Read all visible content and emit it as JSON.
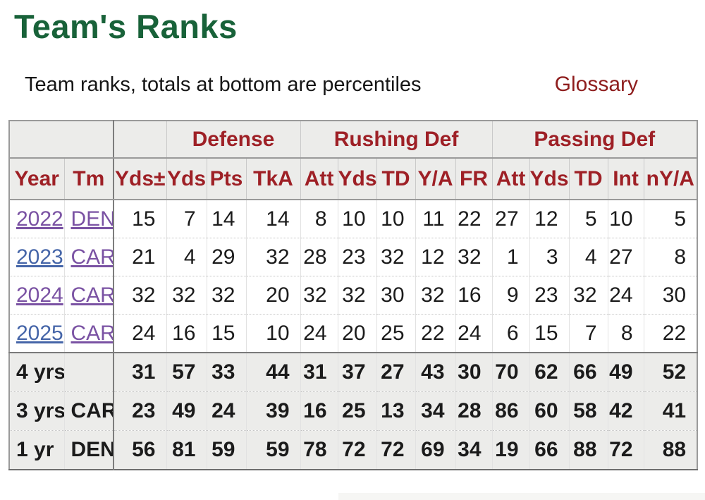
{
  "page": {
    "title": "Team's Ranks",
    "subtitle": "Team ranks, totals at bottom are percentiles",
    "glossary_label": "Glossary"
  },
  "colors": {
    "title_green": "#186239",
    "header_red": "#9e2026",
    "glossary_maroon": "#8e1d1d",
    "link_blue": "#4565a8",
    "link_visited_purple": "#7a52a3",
    "header_bg": "#ececea",
    "total_bg": "#ececea"
  },
  "table": {
    "column_groups": [
      {
        "label": "",
        "span": 2
      },
      {
        "label": "",
        "span": 1
      },
      {
        "label": "Defense",
        "span": 3
      },
      {
        "label": "Rushing Def",
        "span": 5
      },
      {
        "label": "Passing Def",
        "span": 5
      }
    ],
    "columns": [
      "Year",
      "Tm",
      "Yds±",
      "Yds",
      "Pts",
      "TkA",
      "Att",
      "Yds",
      "TD",
      "Y/A",
      "FR",
      "Att",
      "Yds",
      "TD",
      "Int",
      "nY/A"
    ],
    "rows": [
      {
        "year": "2022",
        "year_link": "purple",
        "tm": "DEN",
        "tm_link": "purple",
        "values": [
          15,
          7,
          14,
          14,
          8,
          10,
          10,
          11,
          22,
          27,
          12,
          5,
          10,
          5
        ]
      },
      {
        "year": "2023",
        "year_link": "blue",
        "tm": "CAR",
        "tm_link": "purple",
        "values": [
          21,
          4,
          29,
          32,
          28,
          23,
          32,
          12,
          32,
          1,
          3,
          4,
          27,
          8
        ]
      },
      {
        "year": "2024",
        "year_link": "purple",
        "tm": "CAR",
        "tm_link": "purple",
        "values": [
          32,
          32,
          32,
          20,
          32,
          32,
          30,
          32,
          16,
          9,
          23,
          32,
          24,
          30
        ]
      },
      {
        "year": "2025",
        "year_link": "blue",
        "tm": "CAR",
        "tm_link": "purple",
        "values": [
          24,
          16,
          15,
          10,
          24,
          20,
          25,
          22,
          24,
          6,
          15,
          7,
          8,
          22
        ]
      }
    ],
    "totals": [
      {
        "label": "4 yrs",
        "tm": "",
        "values": [
          31,
          57,
          33,
          44,
          31,
          37,
          27,
          43,
          30,
          70,
          62,
          66,
          49,
          52
        ]
      },
      {
        "label": "3 yrs",
        "tm": "CAR",
        "values": [
          23,
          49,
          24,
          39,
          16,
          25,
          13,
          34,
          28,
          86,
          60,
          58,
          42,
          41
        ]
      },
      {
        "label": "1 yr",
        "tm": "DEN",
        "values": [
          56,
          81,
          59,
          59,
          78,
          72,
          72,
          69,
          34,
          19,
          66,
          88,
          72,
          88
        ]
      }
    ]
  }
}
